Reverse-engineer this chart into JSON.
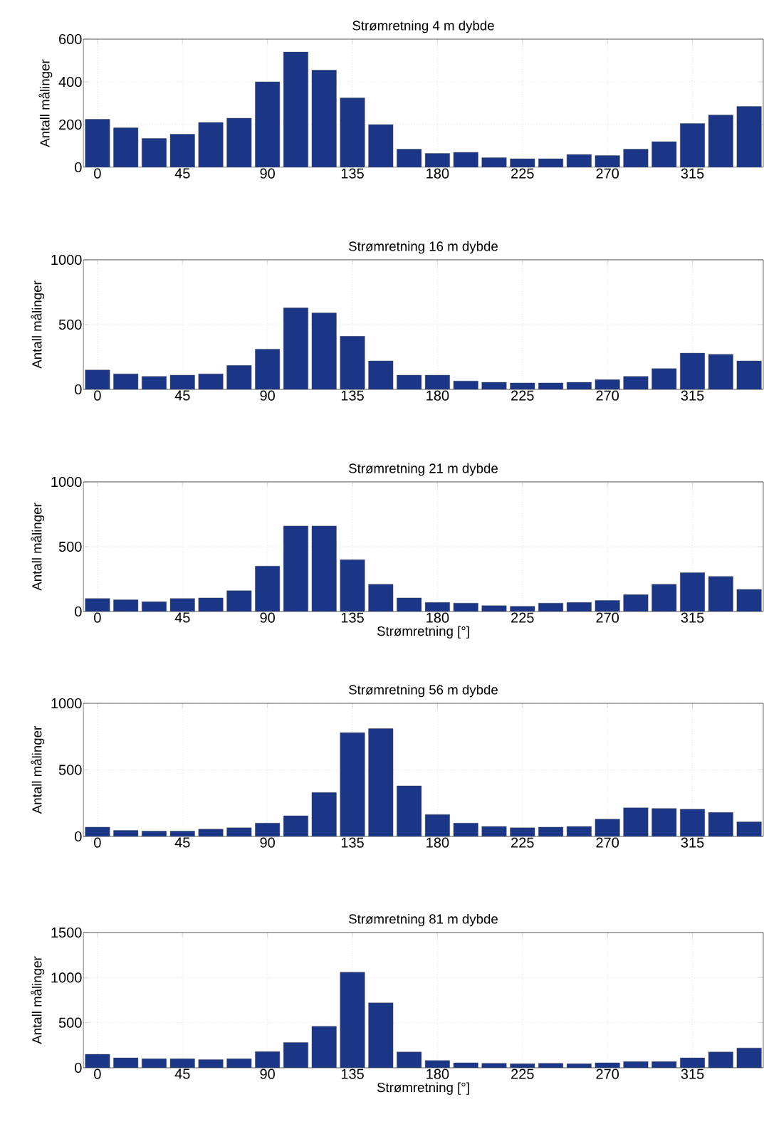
{
  "chart_data": [
    {
      "type": "bar",
      "title": "Strømretning 4 m dybde",
      "ylabel": "Antall målinger",
      "x": [
        0,
        15,
        30,
        45,
        60,
        75,
        90,
        105,
        120,
        135,
        150,
        165,
        180,
        195,
        210,
        225,
        240,
        255,
        270,
        285,
        300,
        315,
        330,
        345
      ],
      "color": "#1c3687",
      "values": [
        225,
        185,
        135,
        155,
        210,
        230,
        400,
        540,
        455,
        325,
        200,
        85,
        65,
        70,
        45,
        40,
        40,
        60,
        55,
        85,
        120,
        205,
        245,
        285
      ],
      "xlim": [
        -7.5,
        352.5
      ],
      "xticks": [
        0,
        45,
        90,
        135,
        180,
        225,
        270,
        315
      ],
      "ylim": [
        0,
        600
      ],
      "yticks": [
        0,
        200,
        400,
        600
      ],
      "grid": true
    },
    {
      "type": "bar",
      "title": "Strømretning 16 m dybde",
      "ylabel": "Antall målinger",
      "x": [
        0,
        15,
        30,
        45,
        60,
        75,
        90,
        105,
        120,
        135,
        150,
        165,
        180,
        195,
        210,
        225,
        240,
        255,
        270,
        285,
        300,
        315,
        330,
        345
      ],
      "color": "#1c3687",
      "values": [
        150,
        120,
        100,
        110,
        120,
        185,
        310,
        630,
        590,
        410,
        220,
        110,
        110,
        65,
        55,
        50,
        50,
        55,
        75,
        100,
        160,
        280,
        270,
        220
      ],
      "xlim": [
        -7.5,
        352.5
      ],
      "xticks": [
        0,
        45,
        90,
        135,
        180,
        225,
        270,
        315
      ],
      "ylim": [
        0,
        1000
      ],
      "yticks": [
        0,
        500,
        1000
      ],
      "grid": true
    },
    {
      "type": "bar",
      "title": "Strømretning 21 m dybde",
      "ylabel": "Antall målinger",
      "xlabel": "Strømretning [°]",
      "x": [
        0,
        15,
        30,
        45,
        60,
        75,
        90,
        105,
        120,
        135,
        150,
        165,
        180,
        195,
        210,
        225,
        240,
        255,
        270,
        285,
        300,
        315,
        330,
        345
      ],
      "color": "#1c3687",
      "values": [
        100,
        90,
        75,
        100,
        105,
        160,
        350,
        660,
        660,
        400,
        210,
        105,
        70,
        65,
        45,
        40,
        65,
        70,
        85,
        130,
        210,
        300,
        270,
        170
      ],
      "xlim": [
        -7.5,
        352.5
      ],
      "xticks": [
        0,
        45,
        90,
        135,
        180,
        225,
        270,
        315
      ],
      "ylim": [
        0,
        1000
      ],
      "yticks": [
        0,
        500,
        1000
      ],
      "grid": true
    },
    {
      "type": "bar",
      "title": "Strømretning 56 m dybde",
      "ylabel": "Antall målinger",
      "x": [
        0,
        15,
        30,
        45,
        60,
        75,
        90,
        105,
        120,
        135,
        150,
        165,
        180,
        195,
        210,
        225,
        240,
        255,
        270,
        285,
        300,
        315,
        330,
        345
      ],
      "color": "#1c3687",
      "values": [
        70,
        45,
        40,
        40,
        55,
        65,
        100,
        155,
        330,
        780,
        810,
        380,
        165,
        100,
        75,
        65,
        70,
        75,
        130,
        215,
        210,
        205,
        180,
        110
      ],
      "xlim": [
        -7.5,
        352.5
      ],
      "xticks": [
        0,
        45,
        90,
        135,
        180,
        225,
        270,
        315
      ],
      "ylim": [
        0,
        1000
      ],
      "yticks": [
        0,
        500,
        1000
      ],
      "grid": true
    },
    {
      "type": "bar",
      "title": "Strømretning 81 m dybde",
      "ylabel": "Antall målinger",
      "xlabel": "Strømretning [°]",
      "x": [
        0,
        15,
        30,
        45,
        60,
        75,
        90,
        105,
        120,
        135,
        150,
        165,
        180,
        195,
        210,
        225,
        240,
        255,
        270,
        285,
        300,
        315,
        330,
        345
      ],
      "color": "#1c3687",
      "values": [
        150,
        110,
        100,
        100,
        90,
        100,
        180,
        280,
        460,
        1060,
        720,
        175,
        80,
        55,
        50,
        45,
        50,
        45,
        55,
        70,
        70,
        110,
        175,
        220
      ],
      "xlim": [
        -7.5,
        352.5
      ],
      "xticks": [
        0,
        45,
        90,
        135,
        180,
        225,
        270,
        315
      ],
      "ylim": [
        0,
        1500
      ],
      "yticks": [
        0,
        500,
        1000,
        1500
      ],
      "grid": true
    }
  ]
}
